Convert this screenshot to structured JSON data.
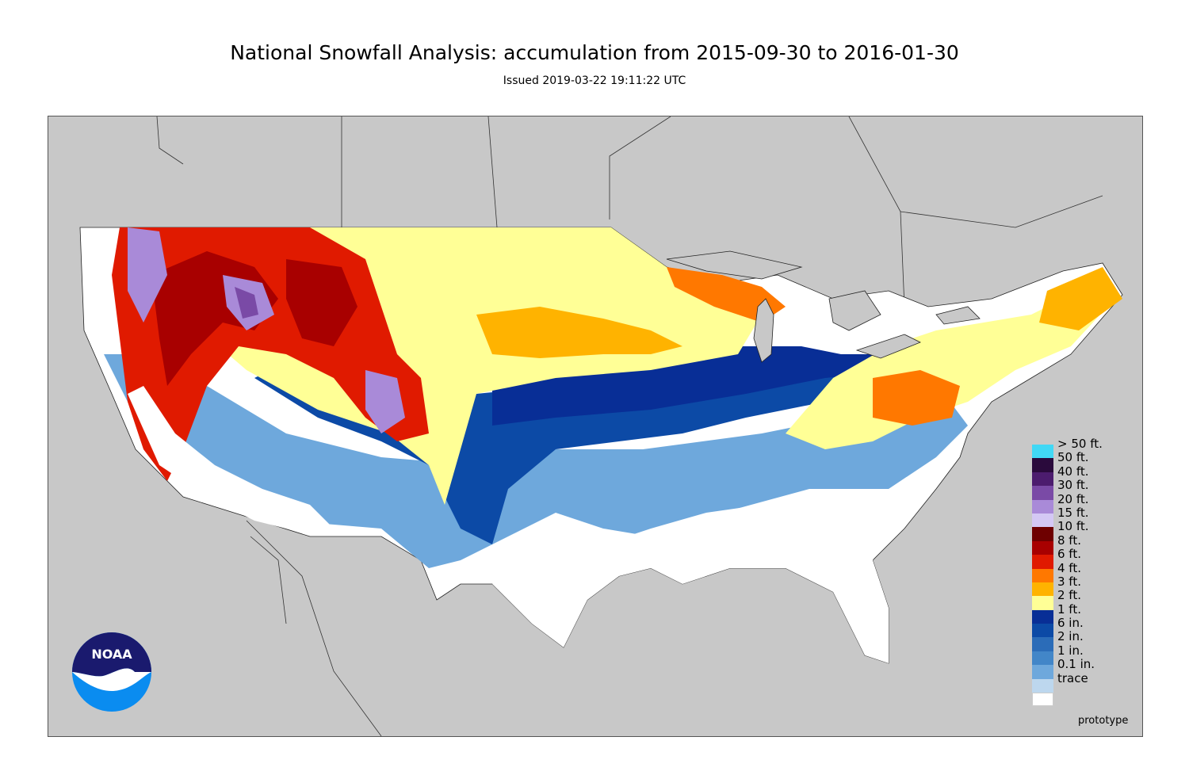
{
  "header": {
    "title": "National Snowfall Analysis: accumulation from 2015-09-30 to 2016-01-30",
    "subtitle": "Issued 2019-03-22 19:11:22 UTC"
  },
  "map": {
    "background_color": "#c8c8c8",
    "boundary_color": "#333333",
    "region": "Contiguous United States",
    "note": "prototype"
  },
  "legend": {
    "items": [
      {
        "label": "> 50 ft.",
        "color": "#41d8f5"
      },
      {
        "label": "50 ft.",
        "color": "#2a0a3c"
      },
      {
        "label": "40 ft.",
        "color": "#4c1c6e"
      },
      {
        "label": "30 ft.",
        "color": "#7a4aa6"
      },
      {
        "label": "20 ft.",
        "color": "#a98ad8"
      },
      {
        "label": "15 ft.",
        "color": "#d4c8f4"
      },
      {
        "label": "10 ft.",
        "color": "#6e0000"
      },
      {
        "label": "8 ft.",
        "color": "#a80000"
      },
      {
        "label": "6 ft.",
        "color": "#e01a00"
      },
      {
        "label": "4 ft.",
        "color": "#ff7800"
      },
      {
        "label": "3 ft.",
        "color": "#ffb300"
      },
      {
        "label": "2 ft.",
        "color": "#ffff96"
      },
      {
        "label": "1 ft.",
        "color": "#082e96"
      },
      {
        "label": "6 in.",
        "color": "#0c4aa6"
      },
      {
        "label": "2 in.",
        "color": "#2b6cb8"
      },
      {
        "label": "1 in.",
        "color": "#4286c8"
      },
      {
        "label": "0.1 in.",
        "color": "#6ea8dc"
      },
      {
        "label": "trace",
        "color": "#bdd7ee"
      },
      {
        "label": "",
        "color": "#ffffff"
      }
    ]
  },
  "logo": {
    "text": "NOAA",
    "icon": "noaa-logo-icon",
    "colors": {
      "top": "#1a1a6e",
      "bottom": "#0a8cf0"
    }
  }
}
